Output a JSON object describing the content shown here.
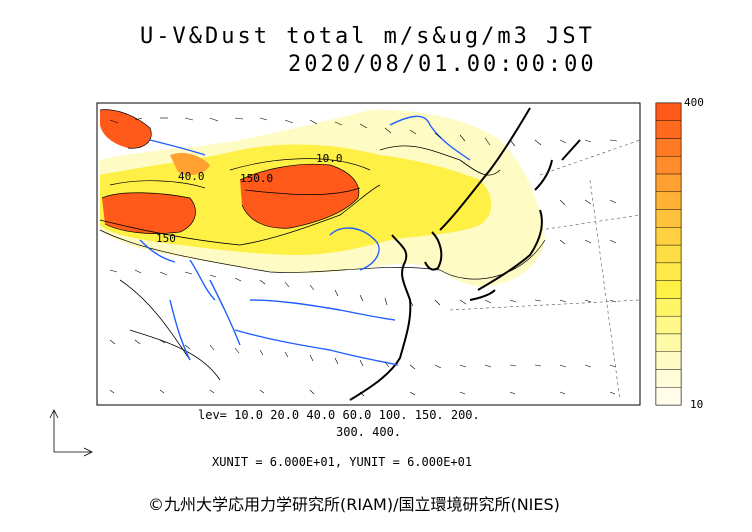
{
  "title": {
    "line1": "U-V&Dust total m/s&ug/m3 JST",
    "line2": "2020/08/01.00:00:00"
  },
  "levels": {
    "line1": "lev= 10.0 20.0 40.0 60.0 100. 150. 200.",
    "line2": "300. 400."
  },
  "units_text": "XUNIT = 6.000E+01, YUNIT = 6.000E+01",
  "credit": "©九州大学応用力学研究所(RIAM)/国立環境研究所(NIES)",
  "colorbar": {
    "max_label": "400",
    "min_label": "10",
    "colors": [
      "#ff5a1a",
      "#ff6a1f",
      "#ff7a24",
      "#ff8c2a",
      "#ffa030",
      "#ffb236",
      "#ffc23c",
      "#ffd040",
      "#ffdd44",
      "#ffe84a",
      "#fff046",
      "#fff566",
      "#fff888",
      "#fffaa8",
      "#fffbc4",
      "#fffcd8",
      "#fffde8"
    ]
  },
  "contour_labels": [
    "10.0",
    "40.0",
    "150.0",
    "150"
  ],
  "colors": {
    "high": "#ff5a1a",
    "mid": "#ffd040",
    "low": "#fffbc4",
    "river": "#1f5fff",
    "coast": "#000000"
  }
}
